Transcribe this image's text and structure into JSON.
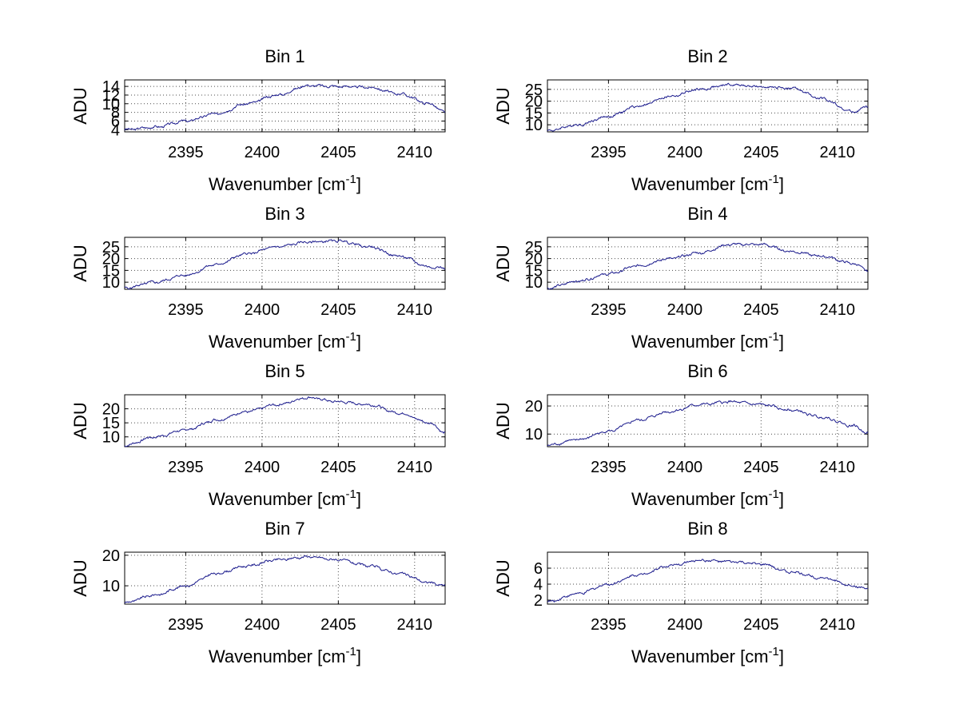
{
  "figure": {
    "background": "#ffffff",
    "line_color": "#1a1a8c"
  },
  "chart_data": [
    {
      "type": "line",
      "title": "Bin 1",
      "xlabel": "Wavenumber [cm",
      "xlabel_sup": "-1",
      "xlabel_end": "]",
      "ylabel": "ADU",
      "xlim": [
        2391,
        2412
      ],
      "ylim": [
        3.5,
        15.5
      ],
      "xticks": [
        2395,
        2400,
        2405,
        2410
      ],
      "yticks": [
        4,
        6,
        8,
        10,
        12,
        14
      ],
      "x": [
        2391,
        2393,
        2395,
        2397,
        2399,
        2401,
        2403,
        2405,
        2407,
        2409,
        2411,
        2412
      ],
      "y": [
        4,
        4.6,
        6,
        7.7,
        10,
        12,
        14.2,
        14,
        13.8,
        12.3,
        10,
        8
      ]
    },
    {
      "type": "line",
      "title": "Bin 2",
      "xlabel": "Wavenumber [cm",
      "xlabel_sup": "-1",
      "xlabel_end": "]",
      "ylabel": "ADU",
      "xlim": [
        2391,
        2412
      ],
      "ylim": [
        7,
        29
      ],
      "xticks": [
        2395,
        2400,
        2405,
        2410
      ],
      "yticks": [
        10,
        15,
        20,
        25
      ],
      "x": [
        2391,
        2393,
        2395,
        2397,
        2399,
        2401,
        2403,
        2405,
        2407,
        2409,
        2411,
        2412
      ],
      "y": [
        7.5,
        10,
        13.5,
        18,
        22,
        25,
        27,
        26,
        25.5,
        21,
        15.5,
        17.5
      ]
    },
    {
      "type": "line",
      "title": "Bin 3",
      "xlabel": "Wavenumber [cm",
      "xlabel_sup": "-1",
      "xlabel_end": "]",
      "ylabel": "ADU",
      "xlim": [
        2391,
        2412
      ],
      "ylim": [
        7,
        29
      ],
      "xticks": [
        2395,
        2400,
        2405,
        2410
      ],
      "yticks": [
        10,
        15,
        20,
        25
      ],
      "x": [
        2391,
        2393,
        2395,
        2397,
        2399,
        2401,
        2403,
        2405,
        2407,
        2409,
        2411,
        2412
      ],
      "y": [
        7.5,
        10,
        13,
        17.5,
        22,
        25,
        27,
        27.5,
        25,
        21,
        16.5,
        16
      ]
    },
    {
      "type": "line",
      "title": "Bin 4",
      "xlabel": "Wavenumber [cm",
      "xlabel_sup": "-1",
      "xlabel_end": "]",
      "ylabel": "ADU",
      "xlim": [
        2391,
        2412
      ],
      "ylim": [
        7,
        29
      ],
      "xticks": [
        2395,
        2400,
        2405,
        2410
      ],
      "yticks": [
        10,
        15,
        20,
        25
      ],
      "x": [
        2391,
        2393,
        2395,
        2397,
        2399,
        2401,
        2403,
        2405,
        2407,
        2409,
        2411,
        2412
      ],
      "y": [
        7.5,
        10.5,
        13.5,
        17,
        20,
        22.5,
        26,
        26,
        23,
        21,
        18,
        15
      ]
    },
    {
      "type": "line",
      "title": "Bin 5",
      "xlabel": "Wavenumber [cm",
      "xlabel_sup": "-1",
      "xlabel_end": "]",
      "ylabel": "ADU",
      "xlim": [
        2391,
        2412
      ],
      "ylim": [
        6.5,
        25
      ],
      "xticks": [
        2395,
        2400,
        2405,
        2410
      ],
      "yticks": [
        10,
        15,
        20
      ],
      "x": [
        2391,
        2393,
        2395,
        2397,
        2399,
        2401,
        2403,
        2405,
        2407,
        2409,
        2411,
        2412
      ],
      "y": [
        7,
        10,
        12.5,
        16,
        19,
        21.5,
        24,
        22.5,
        21.5,
        18.5,
        15,
        11.5
      ]
    },
    {
      "type": "line",
      "title": "Bin 6",
      "xlabel": "Wavenumber [cm",
      "xlabel_sup": "-1",
      "xlabel_end": "]",
      "ylabel": "ADU",
      "xlim": [
        2391,
        2412
      ],
      "ylim": [
        5.5,
        24
      ],
      "xticks": [
        2395,
        2400,
        2405,
        2410
      ],
      "yticks": [
        10,
        20
      ],
      "x": [
        2391,
        2393,
        2395,
        2397,
        2399,
        2401,
        2403,
        2405,
        2407,
        2409,
        2411,
        2412
      ],
      "y": [
        6,
        8,
        11,
        15,
        18,
        20.5,
        21.5,
        20.5,
        18.5,
        16,
        13,
        10.5
      ]
    },
    {
      "type": "line",
      "title": "Bin 7",
      "xlabel": "Wavenumber [cm",
      "xlabel_sup": "-1",
      "xlabel_end": "]",
      "ylabel": "ADU",
      "xlim": [
        2391,
        2412
      ],
      "ylim": [
        4,
        21
      ],
      "xticks": [
        2395,
        2400,
        2405,
        2410
      ],
      "yticks": [
        10,
        20
      ],
      "x": [
        2391,
        2393,
        2395,
        2397,
        2399,
        2401,
        2403,
        2405,
        2407,
        2409,
        2411,
        2412
      ],
      "y": [
        4.5,
        7,
        10,
        14,
        16.5,
        18.5,
        19.5,
        18.5,
        16.5,
        14,
        11,
        10
      ]
    },
    {
      "type": "line",
      "title": "Bin 8",
      "xlabel": "Wavenumber [cm",
      "xlabel_sup": "-1",
      "xlabel_end": "]",
      "ylabel": "ADU",
      "xlim": [
        2391,
        2412
      ],
      "ylim": [
        1.5,
        8
      ],
      "xticks": [
        2395,
        2400,
        2405,
        2410
      ],
      "yticks": [
        2,
        4,
        6
      ],
      "x": [
        2391,
        2393,
        2395,
        2397,
        2399,
        2401,
        2403,
        2405,
        2407,
        2409,
        2411,
        2412
      ],
      "y": [
        1.8,
        2.8,
        4,
        5.2,
        6.3,
        7,
        6.8,
        6.5,
        5.5,
        4.8,
        3.8,
        3.4
      ]
    }
  ]
}
